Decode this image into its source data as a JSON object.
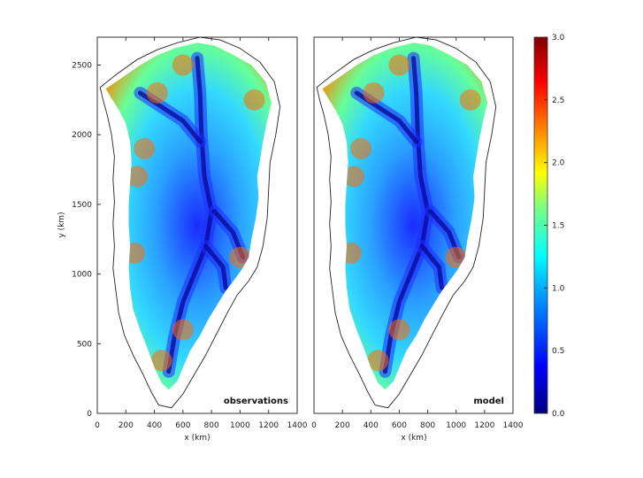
{
  "chart_data": [
    {
      "type": "heatmap",
      "panel_label": "observations",
      "xlabel": "x (km)",
      "ylabel": "y (km)",
      "xlim": [
        0,
        1400
      ],
      "ylim": [
        0,
        2700
      ],
      "x_ticks": [
        0,
        200,
        400,
        600,
        800,
        1000,
        1200,
        1400
      ],
      "y_ticks": [
        0,
        500,
        1000,
        1500,
        2000,
        2500
      ],
      "colormap": "jet",
      "description_of_field": "Greenland ice sheet map"
    },
    {
      "type": "heatmap",
      "panel_label": "model",
      "xlabel": "x (km)",
      "xlim": [
        0,
        1400
      ],
      "ylim": [
        0,
        2700
      ],
      "x_ticks": [
        0,
        200,
        400,
        600,
        800,
        1000,
        1200,
        1400
      ],
      "colormap": "jet"
    }
  ],
  "colorbar": {
    "range": [
      0.0,
      3.0
    ],
    "ticks": [
      "0.0",
      "0.5",
      "1.0",
      "1.5",
      "2.0",
      "2.5",
      "3.0"
    ],
    "colors": [
      "#00007f",
      "#0000ff",
      "#007fff",
      "#00ffff",
      "#7fff7f",
      "#ffff00",
      "#ff7f00",
      "#ff0000",
      "#7f0000"
    ]
  }
}
